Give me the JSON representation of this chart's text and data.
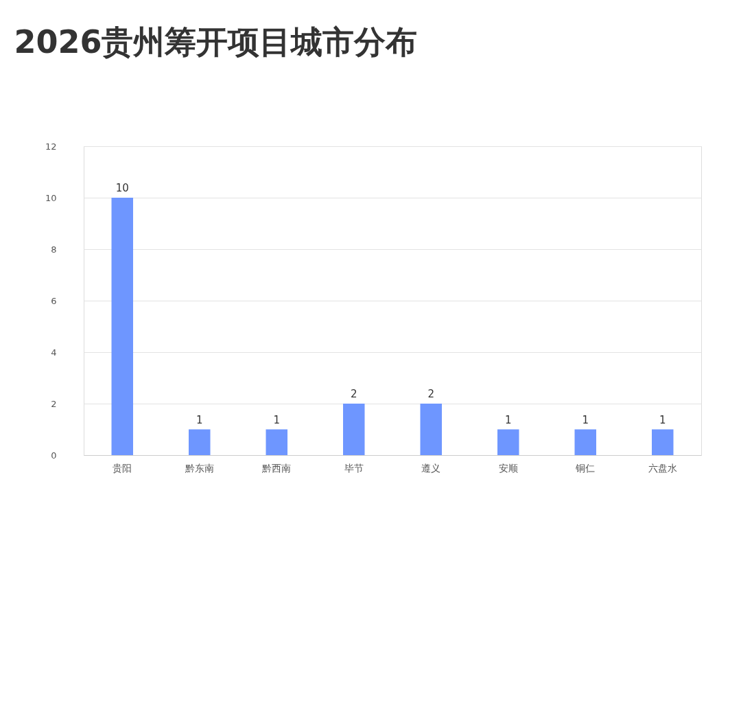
{
  "chart_data": {
    "type": "bar",
    "title": "2026贵州筹开项目城市分布",
    "categories": [
      "贵阳",
      "黔东南",
      "黔西南",
      "毕节",
      "遵义",
      "安顺",
      "铜仁",
      "六盘水"
    ],
    "values": [
      10,
      1,
      1,
      2,
      2,
      1,
      1,
      1
    ],
    "color": "#6e96ff",
    "ylim": [
      0,
      12
    ],
    "yticks": [
      0,
      2,
      4,
      6,
      8,
      10,
      12
    ],
    "grid": "y",
    "data_labels": true
  }
}
